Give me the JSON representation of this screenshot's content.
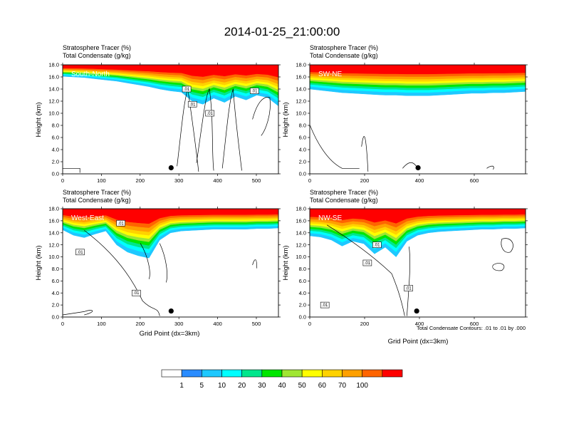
{
  "title": "2014-01-25_21:00:00",
  "chart_data": {
    "type": "heatmap",
    "title": "2014-01-25_21:00:00",
    "field_label": "Stratosphere Tracer",
    "field_unit": "(%)",
    "contour_label": "Total Condensate",
    "contour_unit": "(g/kg)",
    "footnote": "Total Condensate Contours: .01 to .01 by .000",
    "ylabel": "Height (km)",
    "xlabel": "Grid Point (dx=3km)",
    "ylim": [
      0,
      18
    ],
    "yticks": [
      "0.0",
      "2.0",
      "4.0",
      "6.0",
      "8.0",
      "10.0",
      "12.0",
      "14.0",
      "16.0",
      "18.0"
    ],
    "colorbar": {
      "levels": [
        "1",
        "5",
        "10",
        "20",
        "30",
        "40",
        "50",
        "60",
        "70",
        "100"
      ],
      "colors": [
        "#ffffff",
        "#2a8cff",
        "#1ec8ff",
        "#00ffff",
        "#00e68c",
        "#00e600",
        "#a0e632",
        "#ffff00",
        "#ffd200",
        "#ffa000",
        "#ff6400",
        "#ff0000"
      ]
    },
    "panels": [
      {
        "name": "South-North",
        "xlim": [
          0,
          557
        ],
        "xticks": [
          "0",
          "100",
          "200",
          "300",
          "400",
          "500"
        ],
        "base_km": [
          16.1,
          16.0,
          15.9,
          15.7,
          15.5,
          15.3,
          15.0,
          14.7,
          14.4,
          14.0,
          13.7,
          13.5,
          12.0,
          11.5,
          12.5,
          11.8,
          12.8,
          12.2,
          13.0,
          12.6,
          11.2
        ],
        "marker_x": 280,
        "contour_labels": [
          {
            "text": ".01",
            "x": 320,
            "y": 14.0
          },
          {
            "text": ".01",
            "x": 335,
            "y": 11.5
          },
          {
            "text": ".01",
            "x": 380,
            "y": 10.0
          },
          {
            "text": ".01",
            "x": 495,
            "y": 13.7
          }
        ]
      },
      {
        "name": "SW-NE",
        "xlim": [
          0,
          787
        ],
        "xticks": [
          "0",
          "200",
          "400",
          "600"
        ],
        "base_km": [
          14.0,
          13.8,
          13.6,
          13.4,
          13.3,
          13.2,
          13.1,
          13.0,
          13.0,
          12.9,
          12.9,
          12.9,
          13.0,
          13.1,
          13.2,
          13.3,
          13.3,
          13.4,
          13.4,
          13.5,
          13.6
        ],
        "marker_x": 395,
        "contour_labels": []
      },
      {
        "name": "West-East",
        "xlim": [
          0,
          557
        ],
        "xticks": [
          "0",
          "100",
          "200",
          "300",
          "400",
          "500"
        ],
        "base_km": [
          14.5,
          13.6,
          13.2,
          13.8,
          14.3,
          12.0,
          10.8,
          10.2,
          9.8,
          12.8,
          14.0,
          14.3,
          14.4,
          14.5,
          14.6,
          14.6,
          14.6,
          14.6,
          14.7,
          14.7,
          14.8
        ],
        "marker_x": 280,
        "contour_labels": [
          {
            "text": ".01",
            "x": 150,
            "y": 15.6
          },
          {
            "text": ".01",
            "x": 45,
            "y": 10.8
          },
          {
            "text": ".01",
            "x": 190,
            "y": 4.0
          }
        ]
      },
      {
        "name": "NW-SE",
        "xlim": [
          0,
          787
        ],
        "xticks": [
          "0",
          "200",
          "400",
          "600"
        ],
        "base_km": [
          13.5,
          13.3,
          12.8,
          11.8,
          12.6,
          12.2,
          10.5,
          11.6,
          10.0,
          12.6,
          13.6,
          14.0,
          14.2,
          14.3,
          14.4,
          14.5,
          14.6,
          14.6,
          14.7,
          14.7,
          14.8
        ],
        "marker_x": 390,
        "contour_labels": [
          {
            "text": ".01",
            "x": 245,
            "y": 12.0
          },
          {
            "text": ".01",
            "x": 210,
            "y": 9.0
          },
          {
            "text": ".01",
            "x": 360,
            "y": 4.8
          },
          {
            "text": ".01",
            "x": 55,
            "y": 2.0
          }
        ]
      }
    ]
  }
}
